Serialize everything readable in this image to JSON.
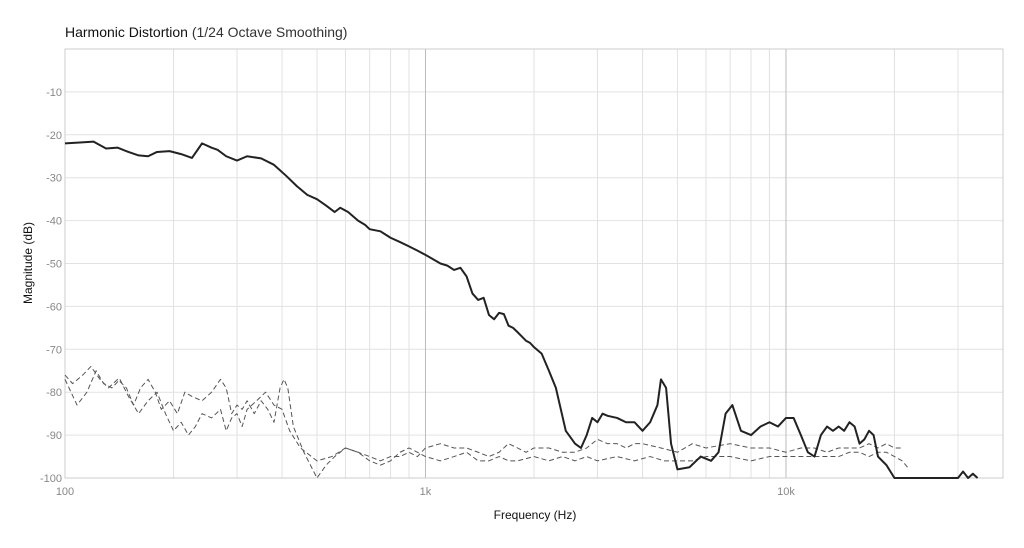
{
  "chart_data": {
    "type": "line",
    "title": "Harmonic Distortion",
    "subtitle": "(1/24 Octave Smoothing)",
    "xlabel": "Frequency (Hz)",
    "ylabel": "Magnitude (dB)",
    "xscale": "log",
    "xlim": [
      100,
      40000
    ],
    "ylim": [
      -100,
      0
    ],
    "xticks": [
      {
        "value": 100,
        "label": "100"
      },
      {
        "value": 1000,
        "label": "1k"
      },
      {
        "value": 10000,
        "label": "10k"
      }
    ],
    "yticks": [
      -10,
      -20,
      -30,
      -40,
      -50,
      -60,
      -70,
      -80,
      -90,
      -100
    ],
    "grid": true,
    "colors": {
      "main": "#222222",
      "harmonic": "#555555",
      "grid": "#e2e2e2",
      "major_grid": "#bbbbbb"
    },
    "series": [
      {
        "style": "solid",
        "points": [
          [
            100,
            -22
          ],
          [
            110,
            -21.8
          ],
          [
            120,
            -21.6
          ],
          [
            130,
            -23.2
          ],
          [
            140,
            -23
          ],
          [
            150,
            -24
          ],
          [
            160,
            -24.8
          ],
          [
            170,
            -25
          ],
          [
            180,
            -24
          ],
          [
            195,
            -23.8
          ],
          [
            210,
            -24.5
          ],
          [
            225,
            -25.4
          ],
          [
            240,
            -22
          ],
          [
            255,
            -23
          ],
          [
            265,
            -23.5
          ],
          [
            280,
            -25
          ],
          [
            300,
            -26
          ],
          [
            320,
            -25
          ],
          [
            350,
            -25.5
          ],
          [
            380,
            -27
          ],
          [
            410,
            -29.5
          ],
          [
            440,
            -32
          ],
          [
            470,
            -34
          ],
          [
            500,
            -35
          ],
          [
            530,
            -36.5
          ],
          [
            560,
            -38
          ],
          [
            580,
            -37
          ],
          [
            610,
            -38
          ],
          [
            650,
            -40
          ],
          [
            680,
            -41
          ],
          [
            700,
            -42
          ],
          [
            750,
            -42.5
          ],
          [
            800,
            -44
          ],
          [
            850,
            -45
          ],
          [
            900,
            -46
          ],
          [
            950,
            -47
          ],
          [
            1000,
            -48
          ],
          [
            1050,
            -49
          ],
          [
            1100,
            -50
          ],
          [
            1150,
            -50.5
          ],
          [
            1200,
            -51.5
          ],
          [
            1250,
            -51
          ],
          [
            1300,
            -53
          ],
          [
            1350,
            -57
          ],
          [
            1400,
            -58.5
          ],
          [
            1450,
            -58
          ],
          [
            1500,
            -62
          ],
          [
            1550,
            -63
          ],
          [
            1600,
            -61.5
          ],
          [
            1650,
            -61.8
          ],
          [
            1700,
            -64.5
          ],
          [
            1750,
            -65
          ],
          [
            1800,
            -66
          ],
          [
            1850,
            -67
          ],
          [
            1900,
            -68
          ],
          [
            1950,
            -68.5
          ],
          [
            2000,
            -69.5
          ],
          [
            2100,
            -71
          ],
          [
            2200,
            -75
          ],
          [
            2300,
            -79
          ],
          [
            2450,
            -89
          ],
          [
            2600,
            -92
          ],
          [
            2700,
            -93
          ],
          [
            2800,
            -90
          ],
          [
            2900,
            -86
          ],
          [
            3000,
            -87
          ],
          [
            3100,
            -85
          ],
          [
            3200,
            -85.5
          ],
          [
            3400,
            -86
          ],
          [
            3600,
            -87
          ],
          [
            3800,
            -87
          ],
          [
            4000,
            -89
          ],
          [
            4200,
            -87
          ],
          [
            4400,
            -83
          ],
          [
            4500,
            -77
          ],
          [
            4650,
            -79
          ],
          [
            4800,
            -92
          ],
          [
            5000,
            -98
          ],
          [
            5400,
            -97.5
          ],
          [
            5800,
            -95
          ],
          [
            6200,
            -96
          ],
          [
            6500,
            -94
          ],
          [
            6800,
            -85
          ],
          [
            7100,
            -83
          ],
          [
            7500,
            -89
          ],
          [
            8000,
            -90
          ],
          [
            8500,
            -88
          ],
          [
            9000,
            -87
          ],
          [
            9500,
            -88
          ],
          [
            10000,
            -86
          ],
          [
            10500,
            -86
          ],
          [
            11000,
            -90
          ],
          [
            11500,
            -94
          ],
          [
            12000,
            -95
          ],
          [
            12500,
            -90
          ],
          [
            13000,
            -88
          ],
          [
            13500,
            -89
          ],
          [
            14000,
            -88
          ],
          [
            14500,
            -89
          ],
          [
            15000,
            -87
          ],
          [
            15500,
            -88
          ],
          [
            16000,
            -92
          ],
          [
            16500,
            -91
          ],
          [
            17000,
            -89
          ],
          [
            17500,
            -90
          ],
          [
            18000,
            -95
          ],
          [
            19000,
            -97
          ],
          [
            20000,
            -100
          ],
          [
            30000,
            -100
          ],
          [
            31000,
            -98.5
          ],
          [
            32000,
            -100
          ],
          [
            33000,
            -99
          ],
          [
            34000,
            -100
          ]
        ]
      },
      {
        "style": "dashed",
        "points": [
          [
            100,
            -77
          ],
          [
            108,
            -83
          ],
          [
            115,
            -80
          ],
          [
            122,
            -75
          ],
          [
            128,
            -78
          ],
          [
            135,
            -79
          ],
          [
            142,
            -77
          ],
          [
            150,
            -81
          ],
          [
            160,
            -85
          ],
          [
            170,
            -82
          ],
          [
            180,
            -80
          ],
          [
            190,
            -85
          ],
          [
            200,
            -89
          ],
          [
            210,
            -87
          ],
          [
            220,
            -90
          ],
          [
            230,
            -88
          ],
          [
            240,
            -85
          ],
          [
            255,
            -86
          ],
          [
            270,
            -84
          ],
          [
            280,
            -89
          ],
          [
            290,
            -86
          ],
          [
            300,
            -85
          ],
          [
            310,
            -88
          ],
          [
            320,
            -84
          ],
          [
            340,
            -82
          ],
          [
            360,
            -80
          ],
          [
            380,
            -83
          ],
          [
            400,
            -84
          ],
          [
            420,
            -89
          ],
          [
            450,
            -93
          ],
          [
            500,
            -96
          ],
          [
            550,
            -95
          ],
          [
            600,
            -93
          ],
          [
            650,
            -94
          ],
          [
            700,
            -95
          ],
          [
            750,
            -96
          ],
          [
            800,
            -95
          ],
          [
            850,
            -95
          ],
          [
            900,
            -94
          ],
          [
            950,
            -95
          ],
          [
            1000,
            -93
          ],
          [
            1100,
            -92
          ],
          [
            1200,
            -93
          ],
          [
            1300,
            -93
          ],
          [
            1400,
            -94
          ],
          [
            1500,
            -95
          ],
          [
            1600,
            -94
          ],
          [
            1700,
            -92
          ],
          [
            1800,
            -93
          ],
          [
            1900,
            -94
          ],
          [
            2000,
            -93
          ],
          [
            2200,
            -93
          ],
          [
            2400,
            -94
          ],
          [
            2600,
            -94
          ],
          [
            2800,
            -93
          ],
          [
            3000,
            -91
          ],
          [
            3200,
            -92
          ],
          [
            3400,
            -92
          ],
          [
            3600,
            -93
          ],
          [
            3800,
            -92
          ],
          [
            4000,
            -92
          ],
          [
            4500,
            -93
          ],
          [
            5000,
            -94
          ],
          [
            5500,
            -92
          ],
          [
            6000,
            -93
          ],
          [
            7000,
            -92
          ],
          [
            8000,
            -93
          ],
          [
            9000,
            -93
          ],
          [
            10000,
            -94
          ],
          [
            11000,
            -93
          ],
          [
            12000,
            -93
          ],
          [
            13000,
            -94
          ],
          [
            14000,
            -93
          ],
          [
            15000,
            -93
          ],
          [
            16000,
            -93
          ],
          [
            17000,
            -92
          ],
          [
            18000,
            -93
          ],
          [
            19000,
            -92
          ],
          [
            20000,
            -93
          ],
          [
            21000,
            -93
          ]
        ]
      },
      {
        "style": "dashed",
        "points": [
          [
            100,
            -76
          ],
          [
            105,
            -78
          ],
          [
            112,
            -76
          ],
          [
            118,
            -74
          ],
          [
            125,
            -77
          ],
          [
            132,
            -79
          ],
          [
            140,
            -77
          ],
          [
            148,
            -79
          ],
          [
            155,
            -83
          ],
          [
            162,
            -79
          ],
          [
            170,
            -77
          ],
          [
            178,
            -80
          ],
          [
            185,
            -84
          ],
          [
            195,
            -82
          ],
          [
            205,
            -85
          ],
          [
            215,
            -80
          ],
          [
            225,
            -81
          ],
          [
            240,
            -82
          ],
          [
            255,
            -80
          ],
          [
            270,
            -77
          ],
          [
            280,
            -79
          ],
          [
            290,
            -85
          ],
          [
            300,
            -83
          ],
          [
            310,
            -84
          ],
          [
            320,
            -82
          ],
          [
            335,
            -85
          ],
          [
            350,
            -82
          ],
          [
            365,
            -84
          ],
          [
            380,
            -87
          ],
          [
            395,
            -79
          ],
          [
            405,
            -77
          ],
          [
            415,
            -79
          ],
          [
            430,
            -88
          ],
          [
            460,
            -94
          ],
          [
            500,
            -100
          ],
          [
            530,
            -97
          ],
          [
            560,
            -95
          ],
          [
            600,
            -93
          ],
          [
            650,
            -94
          ],
          [
            700,
            -96
          ],
          [
            750,
            -97
          ],
          [
            800,
            -96
          ],
          [
            850,
            -94
          ],
          [
            900,
            -93
          ],
          [
            950,
            -94
          ],
          [
            1000,
            -95
          ],
          [
            1100,
            -96
          ],
          [
            1200,
            -95
          ],
          [
            1300,
            -94
          ],
          [
            1400,
            -96
          ],
          [
            1500,
            -96
          ],
          [
            1600,
            -95
          ],
          [
            1700,
            -96
          ],
          [
            1800,
            -96
          ],
          [
            2000,
            -95
          ],
          [
            2200,
            -96
          ],
          [
            2400,
            -95
          ],
          [
            2600,
            -96
          ],
          [
            2800,
            -95
          ],
          [
            3000,
            -96
          ],
          [
            3400,
            -95
          ],
          [
            3800,
            -96
          ],
          [
            4200,
            -95
          ],
          [
            4600,
            -96
          ],
          [
            5000,
            -96
          ],
          [
            5500,
            -96
          ],
          [
            6000,
            -95
          ],
          [
            7000,
            -95
          ],
          [
            8000,
            -96
          ],
          [
            9000,
            -95
          ],
          [
            10000,
            -95
          ],
          [
            11000,
            -95
          ],
          [
            12000,
            -95
          ],
          [
            13000,
            -95
          ],
          [
            14000,
            -95
          ],
          [
            15000,
            -94
          ],
          [
            16000,
            -94
          ],
          [
            17000,
            -95
          ],
          [
            18000,
            -94
          ],
          [
            19000,
            -94
          ],
          [
            20000,
            -95
          ],
          [
            21000,
            -96
          ],
          [
            22000,
            -98
          ]
        ]
      }
    ]
  }
}
